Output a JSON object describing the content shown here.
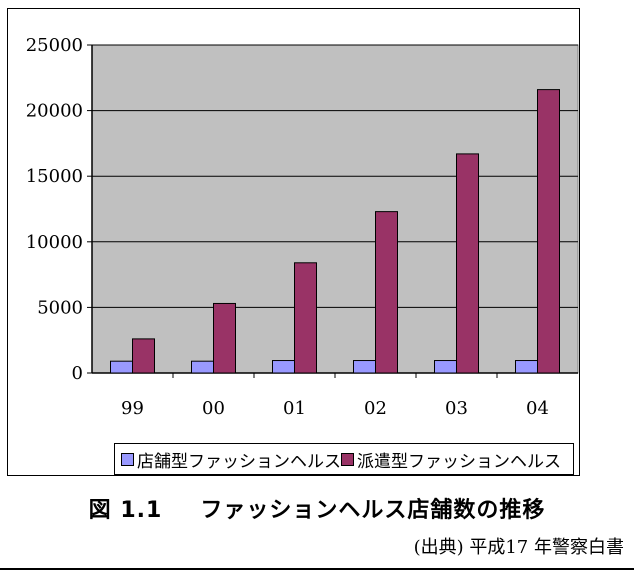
{
  "chart_data": {
    "type": "bar",
    "categories": [
      "99",
      "00",
      "01",
      "02",
      "03",
      "04"
    ],
    "series": [
      {
        "name": "店舗型ファッションヘルス",
        "color": "#9999ff",
        "values": [
          900,
          900,
          950,
          950,
          950,
          950
        ]
      },
      {
        "name": "派遣型ファッションヘルス",
        "color": "#993366",
        "values": [
          2600,
          5300,
          8400,
          12300,
          16700,
          21600
        ]
      }
    ],
    "ylim": [
      0,
      25000
    ],
    "yticks": [
      0,
      5000,
      10000,
      15000,
      20000,
      25000
    ],
    "grid": true,
    "plot_background": "#c0c0c0",
    "legend_position": "bottom"
  },
  "caption": {
    "figure_number": "図 1.1",
    "title": "ファッションヘルス店舗数の推移"
  },
  "source": "(出典) 平成17 年警察白書"
}
